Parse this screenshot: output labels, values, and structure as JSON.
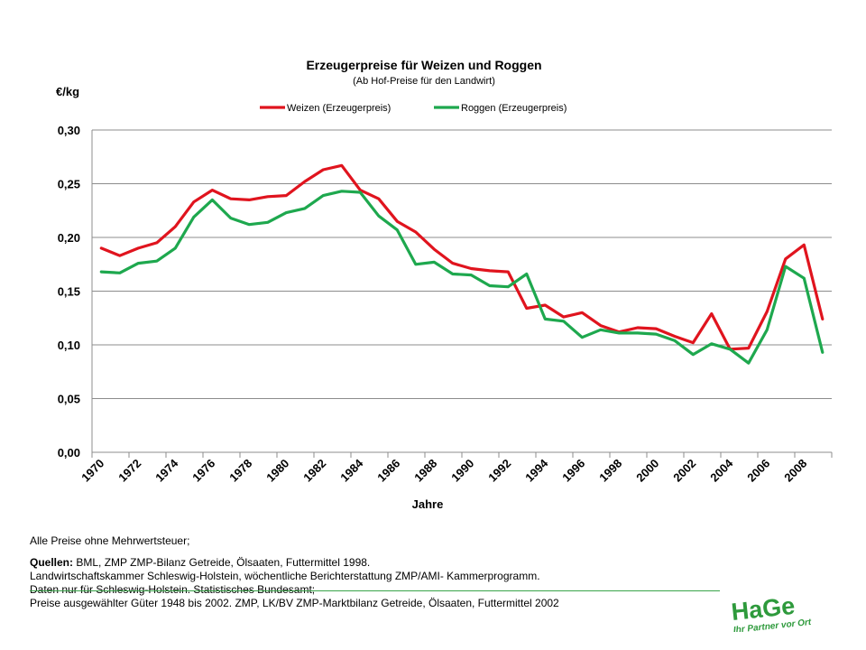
{
  "chart_data": {
    "type": "line",
    "title": "Erzeugerpreise für Weizen und Roggen",
    "subtitle": "(Ab Hof-Preise für den Landwirt)",
    "ylabel": "€/kg",
    "xlabel": "Jahre",
    "ylim": [
      0,
      0.3
    ],
    "yticks": [
      "0,00",
      "0,05",
      "0,10",
      "0,15",
      "0,20",
      "0,25",
      "0,30"
    ],
    "xtick_labels": [
      "1970",
      "1972",
      "1974",
      "1976",
      "1978",
      "1980",
      "1982",
      "1984",
      "1986",
      "1988",
      "1990",
      "1992",
      "1994",
      "1996",
      "1998",
      "2000",
      "2002",
      "2004",
      "2006",
      "2008"
    ],
    "grid": "horizontal",
    "legend": "top",
    "x": [
      1970,
      1971,
      1972,
      1973,
      1974,
      1975,
      1976,
      1977,
      1978,
      1979,
      1980,
      1981,
      1982,
      1983,
      1984,
      1985,
      1986,
      1987,
      1988,
      1989,
      1990,
      1991,
      1992,
      1993,
      1994,
      1995,
      1996,
      1997,
      1998,
      1999,
      2000,
      2001,
      2002,
      2003,
      2004,
      2005,
      2006,
      2007,
      2008,
      2009
    ],
    "series": [
      {
        "name": "Weizen (Erzeugerpreis)",
        "color": "#e0141e",
        "values": [
          0.19,
          0.183,
          0.19,
          0.195,
          0.21,
          0.233,
          0.244,
          0.236,
          0.235,
          0.238,
          0.239,
          0.252,
          0.263,
          0.267,
          0.244,
          0.236,
          0.215,
          0.205,
          0.189,
          0.176,
          0.171,
          0.169,
          0.168,
          0.134,
          0.137,
          0.126,
          0.13,
          0.118,
          0.112,
          0.116,
          0.115,
          0.108,
          0.102,
          0.129,
          0.096,
          0.097,
          0.131,
          0.18,
          0.193,
          0.124
        ]
      },
      {
        "name": "Roggen (Erzeugerpreis)",
        "color": "#1ea84e",
        "values": [
          0.168,
          0.167,
          0.176,
          0.178,
          0.19,
          0.219,
          0.235,
          0.218,
          0.212,
          0.214,
          0.223,
          0.227,
          0.239,
          0.243,
          0.242,
          0.22,
          0.207,
          0.175,
          0.177,
          0.166,
          0.165,
          0.155,
          0.154,
          0.166,
          0.124,
          0.122,
          0.107,
          0.114,
          0.111,
          0.111,
          0.11,
          0.104,
          0.091,
          0.101,
          0.096,
          0.083,
          0.114,
          0.173,
          0.162,
          0.093
        ]
      }
    ]
  },
  "footer": {
    "note": "Alle Preise ohne  Mehrwertsteuer;",
    "sources_label": "Quellen:",
    "sources_line1": " BML, ZMP ZMP-Bilanz Getreide, Ölsaaten, Futtermittel 1998.",
    "sources_line2": "Landwirtschaftskammer Schleswig-Holstein, wöchentliche Berichterstattung ZMP/AMI- Kammerprogramm.",
    "sources_line3": "Daten nur für Schleswig-Holstein. Statistisches Bundesamt;",
    "sources_line4": "Preise ausgewählter Güter 1948 bis 2002. ZMP, LK/BV ZMP-Marktbilanz Getreide, Ölsaaten, Futtermittel 2002"
  },
  "logo": {
    "name": "HaGe",
    "tagline": "Ihr Partner vor Ort",
    "color": "#2e9a3c"
  }
}
